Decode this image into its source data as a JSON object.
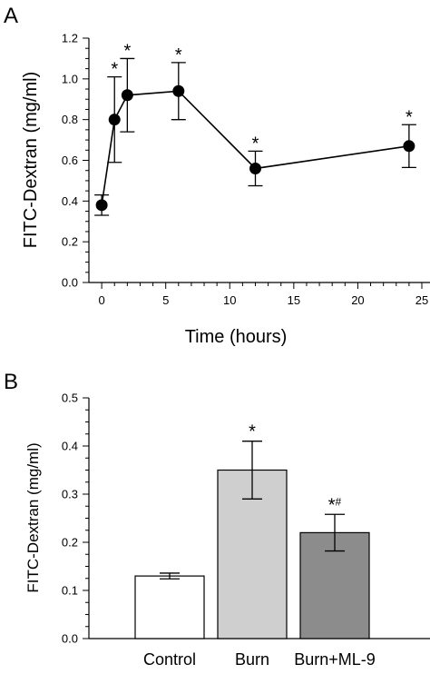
{
  "chart_data": [
    {
      "panel": "A",
      "type": "line",
      "xlabel": "Time (hours)",
      "ylabel": "FITC-Dextran (mg/ml)",
      "xlim": [
        -1,
        25
      ],
      "ylim": [
        0,
        1.2
      ],
      "xticks": [
        "0",
        "5",
        "10",
        "15",
        "20",
        "25"
      ],
      "yticks": [
        "0.0",
        "0.2",
        "0.4",
        "0.6",
        "0.8",
        "1.0",
        "1.2"
      ],
      "series": [
        {
          "points": [
            {
              "x": 0,
              "y": 0.38,
              "err": 0.05,
              "ann": ""
            },
            {
              "x": 1,
              "y": 0.8,
              "err": 0.21,
              "ann": "*"
            },
            {
              "x": 2,
              "y": 0.92,
              "err": 0.18,
              "ann": "*"
            },
            {
              "x": 6,
              "y": 0.94,
              "err": 0.14,
              "ann": "*"
            },
            {
              "x": 12,
              "y": 0.56,
              "err": 0.085,
              "ann": "*"
            },
            {
              "x": 24,
              "y": 0.67,
              "err": 0.105,
              "ann": "*"
            }
          ]
        }
      ]
    },
    {
      "panel": "B",
      "type": "bar",
      "ylabel": "FITC-Dextran (mg/ml)",
      "ylim": [
        0,
        0.5
      ],
      "yticks": [
        "0.0",
        "0.1",
        "0.2",
        "0.3",
        "0.4",
        "0.5"
      ],
      "categories": [
        "Control",
        "Burn",
        "Burn+ML-9"
      ],
      "values": [
        0.13,
        0.35,
        0.22
      ],
      "errors": [
        0.006,
        0.06,
        0.038
      ],
      "annotations": [
        "",
        "*",
        "*#"
      ],
      "colors": [
        "#ffffff",
        "#cfcfcf",
        "#8c8c8c"
      ]
    }
  ]
}
